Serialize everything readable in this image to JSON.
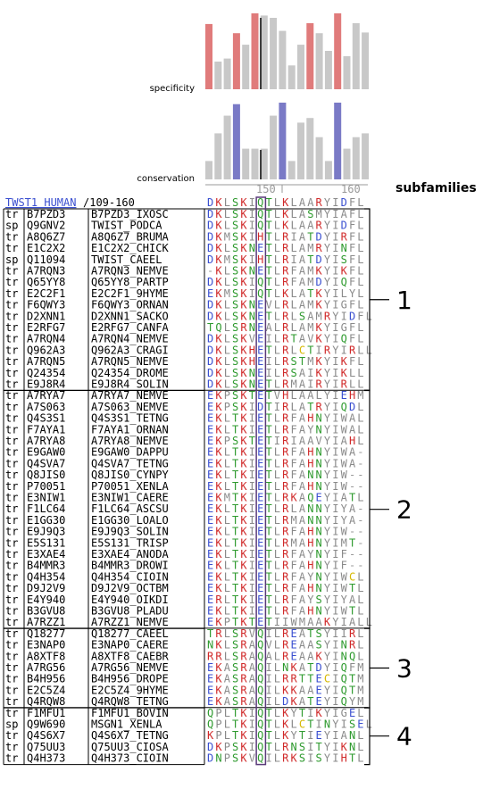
{
  "specificity": {
    "label": "specificity",
    "bars": [
      {
        "h": 0.85,
        "c": "#e07b7b"
      },
      {
        "h": 0.36,
        "c": "#c8c8c8"
      },
      {
        "h": 0.4,
        "c": "#c8c8c8"
      },
      {
        "h": 0.73,
        "c": "#e07b7b"
      },
      {
        "h": 0.58,
        "c": "#c8c8c8"
      },
      {
        "h": 0.99,
        "c": "#e07b7b"
      },
      {
        "h": 0.96,
        "c": "#c8c8c8"
      },
      {
        "h": 0.93,
        "c": "#c8c8c8"
      },
      {
        "h": 0.76,
        "c": "#c8c8c8"
      },
      {
        "h": 0.31,
        "c": "#c8c8c8"
      },
      {
        "h": 0.58,
        "c": "#c8c8c8"
      },
      {
        "h": 0.86,
        "c": "#e07b7b"
      },
      {
        "h": 0.73,
        "c": "#c8c8c8"
      },
      {
        "h": 0.5,
        "c": "#c8c8c8"
      },
      {
        "h": 0.99,
        "c": "#e07b7b"
      },
      {
        "h": 0.43,
        "c": "#c8c8c8"
      },
      {
        "h": 0.86,
        "c": "#c8c8c8"
      },
      {
        "h": 0.74,
        "c": "#c8c8c8"
      }
    ]
  },
  "conservation": {
    "label": "conservation",
    "bars": [
      {
        "h": 0.24,
        "c": "#c8c8c8"
      },
      {
        "h": 0.6,
        "c": "#c8c8c8"
      },
      {
        "h": 0.83,
        "c": "#c8c8c8"
      },
      {
        "h": 0.98,
        "c": "#7a7ac6"
      },
      {
        "h": 0.4,
        "c": "#c8c8c8"
      },
      {
        "h": 0.4,
        "c": "#c8c8c8"
      },
      {
        "h": 0.4,
        "c": "#c8c8c8"
      },
      {
        "h": 0.83,
        "c": "#c8c8c8"
      },
      {
        "h": 1.0,
        "c": "#7a7ac6"
      },
      {
        "h": 0.24,
        "c": "#c8c8c8"
      },
      {
        "h": 0.74,
        "c": "#c8c8c8"
      },
      {
        "h": 0.8,
        "c": "#c8c8c8"
      },
      {
        "h": 0.55,
        "c": "#c8c8c8"
      },
      {
        "h": 0.24,
        "c": "#c8c8c8"
      },
      {
        "h": 1.0,
        "c": "#7a7ac6"
      },
      {
        "h": 0.4,
        "c": "#c8c8c8"
      },
      {
        "h": 0.55,
        "c": "#c8c8c8"
      },
      {
        "h": 0.6,
        "c": "#c8c8c8"
      }
    ]
  },
  "ruler": {
    "tick_left": "150",
    "tick_right": "160"
  },
  "subfamilies_label": "subfamilies",
  "reference": {
    "name": "TWST1_HUMAN",
    "range": "/109-160",
    "seq": "DKLSKIQTLKLAARYIDFL"
  },
  "rows": [
    {
      "db": "tr",
      "acc": "B7PZD3",
      "id": "B7PZD3_IXOSC",
      "seq": "DKLSKIQTLKLASMYIAFL"
    },
    {
      "db": "sp",
      "acc": "Q9GNV2",
      "id": "TWIST_PODCA",
      "seq": "DKLSKIQTLKLAARYIDFL"
    },
    {
      "db": "tr",
      "acc": "A8Q6Z7",
      "id": "A8Q6Z7_BRUMA",
      "seq": "DKMSKIHTLRIATDYIRFL"
    },
    {
      "db": "tr",
      "acc": "E1C2X2",
      "id": "E1C2X2_CHICK",
      "seq": "DKLSKNETLRLAMRYINFL"
    },
    {
      "db": "sp",
      "acc": "Q11094",
      "id": "TWIST_CAEEL",
      "seq": "DKMSKIHTLRIATDYISFL"
    },
    {
      "db": "tr",
      "acc": "A7RQN3",
      "id": "A7RQN3_NEMVE",
      "seq": "-KLSKNETLRFAMKYIKFL"
    },
    {
      "db": "tr",
      "acc": "Q65YY8",
      "id": "Q65YY8_PARTP",
      "seq": "DKLSKIQTLRFAMDYIQFL"
    },
    {
      "db": "tr",
      "acc": "E2C2F1",
      "id": "E2C2F1_9HYME",
      "seq": "EKMSKIQTLKLATKYILYL"
    },
    {
      "db": "tr",
      "acc": "F6QWY3",
      "id": "F6QWY3_ORNAN",
      "seq": "DKLSKNEVLRLAMKYIGFL"
    },
    {
      "db": "tr",
      "acc": "D2XNN1",
      "id": "D2XNN1_SACKO",
      "seq": "DKLSKNETLRLSAMRYIDFL"
    },
    {
      "db": "tr",
      "acc": "E2RFG7",
      "id": "E2RFG7_CANFA",
      "seq": "TQLSRNEALRLAMKYIGFL"
    },
    {
      "db": "tr",
      "acc": "A7RQN4",
      "id": "A7RQN4_NEMVE",
      "seq": "DKLSKVEILRTAVKYIQFL"
    },
    {
      "db": "tr",
      "acc": "Q962A3",
      "id": "Q962A3_CRAGI",
      "seq": "DKLSKHETLRLCTIRYIRLL"
    },
    {
      "db": "tr",
      "acc": "A7RQN5",
      "id": "A7RQN5_NEMVE",
      "seq": "DKLSKHEILRSTMKYIKFL"
    },
    {
      "db": "tr",
      "acc": "Q24354",
      "id": "Q24354_DROME",
      "seq": "DKLSKNEILRSAIKYIKLL"
    },
    {
      "db": "tr",
      "acc": "E9J8R4",
      "id": "E9J8R4_SOLIN",
      "seq": "DKLSKNETLRMAIRYIRLL"
    },
    {
      "db": "tr",
      "acc": "A7RYA7",
      "id": "A7RYA7_NEMVE",
      "seq": "EKPSKTETVHLAALYIEHM"
    },
    {
      "db": "tr",
      "acc": "A7S063",
      "id": "A7S063_NEMVE",
      "seq": "EKPSKIDTIRLATRYIQDL"
    },
    {
      "db": "tr",
      "acc": "Q4S3S1",
      "id": "Q4S3S1_TETNG",
      "seq": "EKLTKIETLRFAHNYIWAL"
    },
    {
      "db": "tr",
      "acc": "F7AYA1",
      "id": "F7AYA1_ORNAN",
      "seq": "EKLTKIETLRFAYNYIWAL"
    },
    {
      "db": "tr",
      "acc": "A7RYA8",
      "id": "A7RYA8_NEMVE",
      "seq": "EKPSKTETIRIAAVYIAHL"
    },
    {
      "db": "tr",
      "acc": "E9GAW0",
      "id": "E9GAW0_DAPPU",
      "seq": "EKLTKIETLRFAHNYIWA-"
    },
    {
      "db": "tr",
      "acc": "Q4SVA7",
      "id": "Q4SVA7_TETNG",
      "seq": "EKLTKIETLRFAHNYIWA-"
    },
    {
      "db": "tr",
      "acc": "Q8JIS0",
      "id": "Q8JIS0_CYNPY",
      "seq": "EKLTKIETLRFANNYIW--"
    },
    {
      "db": "tr",
      "acc": "P70051",
      "id": "P70051_XENLA",
      "seq": "EKLTKIETLRFAHNYIW--"
    },
    {
      "db": "tr",
      "acc": "E3NIW1",
      "id": "E3NIW1_CAERE",
      "seq": "EKMTKIETLRKAQEYIATL"
    },
    {
      "db": "tr",
      "acc": "F1LC64",
      "id": "F1LC64_ASCSU",
      "seq": "EKLTKIETLRLANNYIYA-"
    },
    {
      "db": "tr",
      "acc": "E1GG30",
      "id": "E1GG30_LOALO",
      "seq": "EKLTKIETLRMANNYIYA-"
    },
    {
      "db": "tr",
      "acc": "E9J9Q3",
      "id": "E9J9Q3_SOLIN",
      "seq": "EKLTKIETLRFAHNYIW--"
    },
    {
      "db": "tr",
      "acc": "E5S131",
      "id": "E5S131_TRISP",
      "seq": "EKLTKIETLRMAHNYIMT-"
    },
    {
      "db": "tr",
      "acc": "E3XAE4",
      "id": "E3XAE4_ANODA",
      "seq": "EKLTKIETLRFAYNYIF--"
    },
    {
      "db": "tr",
      "acc": "B4MMR3",
      "id": "B4MMR3_DROWI",
      "seq": "EKLTKIETLRFAHNYIF--"
    },
    {
      "db": "tr",
      "acc": "Q4H354",
      "id": "Q4H354_CIOIN",
      "seq": "EKLTKIETLRFAYNYIWCL"
    },
    {
      "db": "tr",
      "acc": "D9J2V9",
      "id": "D9J2V9_OCTBM",
      "seq": "EKLTKIETLRFAHNYIWTL"
    },
    {
      "db": "tr",
      "acc": "E4Y940",
      "id": "E4Y940_OIKDI",
      "seq": "ERLTKIETLRFAYSYIYAL"
    },
    {
      "db": "tr",
      "acc": "B3GVU8",
      "id": "B3GVU8_PLADU",
      "seq": "EKLTKIETLRFAHNYIWTL"
    },
    {
      "db": "tr",
      "acc": "A7RZZ1",
      "id": "A7RZZ1_NEMVE",
      "seq": "EKPTKTETIIWMAAKYIALL"
    },
    {
      "db": "tr",
      "acc": "Q18277",
      "id": "Q18277_CAEEL",
      "seq": "TRLSRVQILREATSYIIRL"
    },
    {
      "db": "tr",
      "acc": "E3NAP0",
      "id": "E3NAP0_CAERE",
      "seq": "NKLSRAQVLREAASYINRL"
    },
    {
      "db": "tr",
      "acc": "A8XTF8",
      "id": "A8XTF8_CAEBR",
      "seq": "RRLSRAQALREAAKYINQL"
    },
    {
      "db": "tr",
      "acc": "A7RG56",
      "id": "A7RG56_NEMVE",
      "seq": "EKASRAQILNKATDYIQFM"
    },
    {
      "db": "tr",
      "acc": "B4H956",
      "id": "B4H956_DROPE",
      "seq": "EKASRAQILRRTTECIQTM"
    },
    {
      "db": "tr",
      "acc": "E2C5Z4",
      "id": "E2C5Z4_9HYME",
      "seq": "EKASRAQILKKAAEYIQTM"
    },
    {
      "db": "tr",
      "acc": "Q4RQW8",
      "id": "Q4RQW8_TETNG",
      "seq": "EKASRAQILDKATEYIQYM"
    },
    {
      "db": "tr",
      "acc": "F1MFU1",
      "id": "F1MFU1_BOVIN",
      "seq": "QPLTKIQTLKYTIKYIGEL"
    },
    {
      "db": "sp",
      "acc": "Q9W690",
      "id": "MSGN1_XENLA",
      "seq": "QPLTKIQTLKLCTINYISEL"
    },
    {
      "db": "tr",
      "acc": "Q4S6X7",
      "id": "Q4S6X7_TETNG",
      "seq": "KPLTKIQTLKYTIEYIANL"
    },
    {
      "db": "tr",
      "acc": "Q75UU3",
      "id": "Q75UU3_CIOSA",
      "seq": "DKPSKIQTLRNSITYIKNL"
    },
    {
      "db": "tr",
      "acc": "Q4H373",
      "id": "Q4H373_CIOIN",
      "seq": "DNPSKVQILRKSISYIHTL"
    }
  ],
  "groups": [
    {
      "label": "1",
      "start": 0,
      "end": 15
    },
    {
      "label": "2",
      "start": 16,
      "end": 36
    },
    {
      "label": "3",
      "start": 37,
      "end": 43
    },
    {
      "label": "4",
      "start": 44,
      "end": 48
    }
  ],
  "colors": {
    "acidic": "#3a4fd0",
    "basic": "#d02a2a",
    "polar": "#2e9a2e",
    "hydrophobic": "#8a8a8a",
    "cys": "#d6b800",
    "highlight_box": "#5a3a7a"
  }
}
